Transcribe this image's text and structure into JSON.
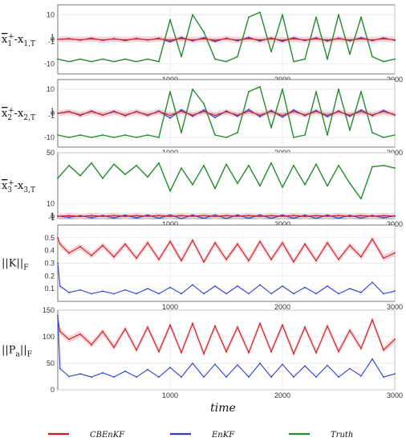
{
  "figure": {
    "xlabel": "time",
    "legend": [
      {
        "name": "CBEnKF",
        "color": "#cc1f1f"
      },
      {
        "name": "EnKF",
        "color": "#2b3fd6"
      },
      {
        "name": "Truth",
        "color": "#238b2a"
      }
    ]
  },
  "colors": {
    "cbenkf": "#cc1f1f",
    "cbenkf_band": "#f6c6cf",
    "enkf": "#2b3fd6",
    "truth": "#238b2a",
    "grid": "#e3e3e3",
    "axis": "#555555"
  },
  "chart_data": [
    {
      "type": "line",
      "label_parts": [
        "x",
        "1",
        "+",
        "-x",
        "1,T"
      ],
      "xlim": [
        0,
        3000
      ],
      "ylim": [
        -14,
        14
      ],
      "xticks": [
        1000,
        2000,
        3000
      ],
      "yticks": [
        -10,
        -1,
        0,
        1,
        10
      ],
      "x": [
        0,
        100,
        200,
        300,
        400,
        500,
        600,
        700,
        800,
        900,
        1000,
        1100,
        1200,
        1300,
        1400,
        1500,
        1600,
        1700,
        1800,
        1900,
        2000,
        2100,
        2200,
        2300,
        2400,
        2500,
        2600,
        2700,
        2800,
        2900,
        3000
      ],
      "series": [
        {
          "name": "Truth",
          "values": [
            -8,
            -9,
            -8,
            -9,
            -8,
            -9,
            -8,
            -9,
            -8,
            -9,
            8,
            -7,
            10,
            3,
            -8,
            -9,
            -7,
            9,
            11,
            -5,
            10,
            -9,
            -8,
            9,
            -8,
            10,
            -6,
            9,
            -7,
            -9,
            -8
          ]
        },
        {
          "name": "EnKF",
          "values": [
            0,
            0.3,
            -0.3,
            0.5,
            -0.4,
            0.3,
            -0.5,
            0.4,
            -0.3,
            0.5,
            -1,
            0.8,
            -0.6,
            0.7,
            -0.9,
            0.5,
            -0.6,
            0.8,
            -0.7,
            0.6,
            -0.8,
            0.7,
            -0.5,
            0.6,
            -0.7,
            0.5,
            -0.6,
            0.7,
            -0.5,
            0.6,
            -0.4
          ]
        },
        {
          "name": "CBEnKF",
          "values": [
            0,
            0.2,
            -0.2,
            0.3,
            -0.3,
            0.2,
            -0.3,
            0.3,
            -0.2,
            0.3,
            -0.4,
            0.4,
            -0.3,
            0.3,
            -0.4,
            0.3,
            -0.3,
            0.4,
            -0.3,
            0.3,
            -0.4,
            0.3,
            -0.3,
            0.3,
            -0.3,
            0.3,
            -0.3,
            0.3,
            -0.3,
            0.3,
            -0.2
          ]
        }
      ]
    },
    {
      "type": "line",
      "label_parts": [
        "x",
        "2",
        "+",
        "-x",
        "2,T"
      ],
      "xlim": [
        0,
        3000
      ],
      "ylim": [
        -14,
        14
      ],
      "xticks": [
        1000,
        2000,
        3000
      ],
      "yticks": [
        -10,
        -1,
        0,
        1,
        10
      ],
      "x": [
        0,
        100,
        200,
        300,
        400,
        500,
        600,
        700,
        800,
        900,
        1000,
        1100,
        1200,
        1300,
        1400,
        1500,
        1600,
        1700,
        1800,
        1900,
        2000,
        2100,
        2200,
        2300,
        2400,
        2500,
        2600,
        2700,
        2800,
        2900,
        3000
      ],
      "series": [
        {
          "name": "Truth",
          "values": [
            -9,
            -10,
            -9,
            -10,
            -9,
            -10,
            -9,
            -10,
            -9,
            -10,
            9,
            -8,
            10,
            4,
            -9,
            -10,
            -8,
            9,
            11,
            -6,
            10,
            -10,
            -9,
            9,
            -9,
            10,
            -7,
            9,
            -8,
            -10,
            -9
          ]
        },
        {
          "name": "EnKF",
          "values": [
            0,
            0.8,
            -0.9,
            1,
            -0.8,
            0.9,
            -1,
            0.8,
            -0.9,
            1,
            -2,
            1.5,
            -1.2,
            1.4,
            -1.8,
            1,
            -1.2,
            1.6,
            -1.4,
            1.2,
            -1.6,
            1.4,
            -1,
            1.2,
            -1.4,
            1,
            -1.2,
            1.4,
            -1,
            1.2,
            -0.8
          ]
        },
        {
          "name": "CBEnKF",
          "values": [
            0,
            0.7,
            -0.7,
            0.8,
            -0.7,
            0.7,
            -0.8,
            0.7,
            -0.7,
            0.8,
            -0.9,
            0.9,
            -0.8,
            0.8,
            -0.9,
            0.7,
            -0.8,
            0.9,
            -0.8,
            0.8,
            -0.9,
            0.8,
            -0.7,
            0.8,
            -0.8,
            0.7,
            -0.8,
            0.8,
            -0.7,
            0.8,
            -0.6
          ]
        }
      ]
    },
    {
      "type": "line",
      "label_parts": [
        "x",
        "3",
        "+",
        "-x",
        "3,T"
      ],
      "xlim": [
        0,
        3000
      ],
      "ylim": [
        -1.5,
        50
      ],
      "xticks": [
        1000,
        2000,
        3000
      ],
      "yticks": [
        -1,
        0,
        1,
        10,
        50
      ],
      "x": [
        0,
        100,
        200,
        300,
        400,
        500,
        600,
        700,
        800,
        900,
        1000,
        1100,
        1200,
        1300,
        1400,
        1500,
        1600,
        1700,
        1800,
        1900,
        2000,
        2100,
        2200,
        2300,
        2400,
        2500,
        2600,
        2700,
        2800,
        2900,
        3000
      ],
      "series": [
        {
          "name": "Truth",
          "values": [
            30,
            40,
            32,
            42,
            30,
            41,
            33,
            40,
            31,
            42,
            20,
            38,
            25,
            40,
            22,
            41,
            26,
            40,
            24,
            42,
            23,
            40,
            25,
            41,
            24,
            40,
            26,
            14,
            39,
            40,
            38
          ]
        },
        {
          "name": "EnKF",
          "values": [
            0.5,
            -0.5,
            0.8,
            -0.8,
            1,
            -1,
            1.2,
            -1,
            1.3,
            -1.2,
            1.4,
            -1.5,
            1.3,
            -1.3,
            1.4,
            -1.4,
            1.3,
            -1.2,
            1.4,
            -1.3,
            1.3,
            -1.2,
            1.2,
            -1.3,
            1.3,
            -1.2,
            1.1,
            -1.1,
            1,
            -0.9,
            0.7
          ]
        },
        {
          "name": "CBEnKF",
          "values": [
            0.3,
            0.8,
            0.2,
            0.9,
            0.3,
            1,
            0.2,
            0.9,
            0.3,
            1,
            0.2,
            0.9,
            0.3,
            1,
            0.2,
            0.9,
            0.3,
            1,
            0.2,
            0.9,
            0.3,
            1,
            0.2,
            0.9,
            0.3,
            1,
            0.2,
            0.9,
            0.3,
            0.8,
            0.4
          ]
        }
      ]
    },
    {
      "type": "line",
      "label_parts": [
        "||K||",
        "F"
      ],
      "xlim": [
        0,
        3000
      ],
      "ylim": [
        0,
        0.6
      ],
      "xticks": [
        1000,
        2000,
        3000
      ],
      "yticks": [
        0.1,
        0.2,
        0.3,
        0.4,
        0.5
      ],
      "x": [
        0,
        20,
        100,
        200,
        300,
        400,
        500,
        600,
        700,
        800,
        900,
        1000,
        1100,
        1200,
        1300,
        1400,
        1500,
        1600,
        1700,
        1800,
        1900,
        2000,
        2100,
        2200,
        2300,
        2400,
        2500,
        2600,
        2700,
        2800,
        2900,
        3000
      ],
      "series": [
        {
          "name": "CBEnKF",
          "values": [
            0.5,
            0.45,
            0.38,
            0.43,
            0.36,
            0.44,
            0.35,
            0.45,
            0.34,
            0.46,
            0.33,
            0.47,
            0.32,
            0.48,
            0.31,
            0.46,
            0.33,
            0.45,
            0.32,
            0.47,
            0.33,
            0.46,
            0.31,
            0.45,
            0.32,
            0.46,
            0.33,
            0.44,
            0.35,
            0.49,
            0.34,
            0.38
          ]
        },
        {
          "name": "EnKF",
          "values": [
            0.3,
            0.12,
            0.07,
            0.09,
            0.06,
            0.08,
            0.06,
            0.09,
            0.06,
            0.1,
            0.06,
            0.11,
            0.06,
            0.13,
            0.06,
            0.12,
            0.06,
            0.12,
            0.06,
            0.13,
            0.06,
            0.12,
            0.06,
            0.11,
            0.06,
            0.12,
            0.06,
            0.1,
            0.07,
            0.15,
            0.06,
            0.08
          ]
        }
      ]
    },
    {
      "type": "line",
      "label_parts": [
        "||P",
        "a",
        "||",
        "F"
      ],
      "xlim": [
        0,
        3000
      ],
      "ylim": [
        0,
        150
      ],
      "xticks": [
        1000,
        2000,
        3000
      ],
      "yticks": [
        0,
        50,
        100,
        150
      ],
      "x": [
        0,
        20,
        100,
        200,
        300,
        400,
        500,
        600,
        700,
        800,
        900,
        1000,
        1100,
        1200,
        1300,
        1400,
        1500,
        1600,
        1700,
        1800,
        1900,
        2000,
        2100,
        2200,
        2300,
        2400,
        2500,
        2600,
        2700,
        2800,
        2900,
        3000
      ],
      "series": [
        {
          "name": "CBEnKF",
          "values": [
            135,
            110,
            95,
            105,
            85,
            110,
            80,
            115,
            75,
            118,
            72,
            122,
            70,
            125,
            68,
            120,
            72,
            118,
            70,
            125,
            72,
            122,
            68,
            118,
            70,
            120,
            72,
            112,
            78,
            132,
            75,
            95
          ]
        },
        {
          "name": "EnKF",
          "values": [
            140,
            40,
            25,
            30,
            24,
            32,
            24,
            35,
            24,
            38,
            24,
            42,
            24,
            50,
            24,
            48,
            24,
            47,
            24,
            50,
            24,
            48,
            24,
            45,
            24,
            46,
            24,
            40,
            26,
            58,
            24,
            30
          ]
        }
      ]
    }
  ]
}
